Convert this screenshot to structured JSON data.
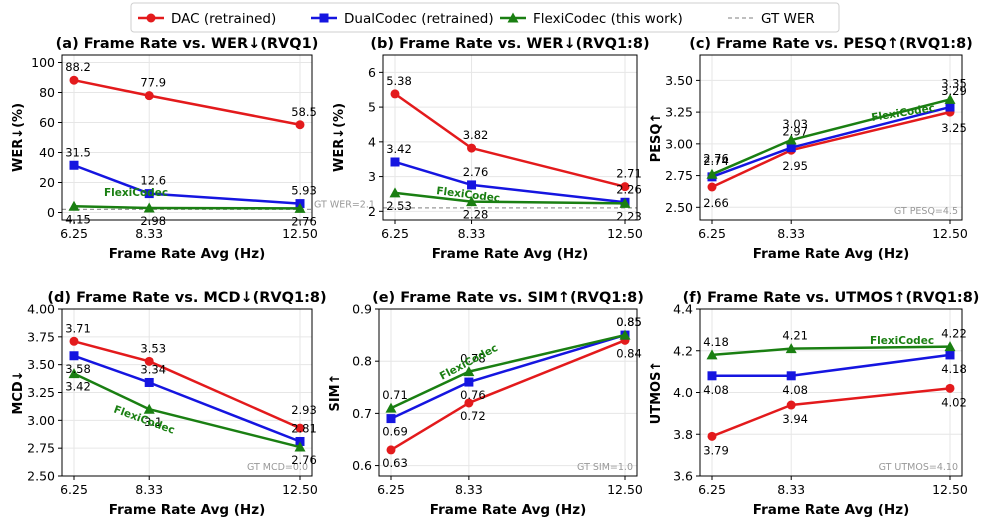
{
  "legend": {
    "items": [
      {
        "label": "DAC (retrained)",
        "color": "#e31a1c",
        "marker": "circle",
        "line": "solid"
      },
      {
        "label": "DualCodec (retrained)",
        "color": "#1515e0",
        "marker": "square",
        "line": "solid"
      },
      {
        "label": "FlexiCodec (this work)",
        "color": "#1a7f12",
        "marker": "triangle",
        "line": "solid"
      },
      {
        "label": "GT WER",
        "color": "#999999",
        "marker": "none",
        "line": "dashed"
      }
    ]
  },
  "colors": {
    "dac": "#e31a1c",
    "dual": "#1515e0",
    "flexi": "#1a7f12",
    "gt": "#999999"
  },
  "chart_data": [
    {
      "type": "line",
      "title": "(a) Frame Rate vs. WER↓(RVQ1)",
      "xlabel": "Frame Rate Avg (Hz)",
      "ylabel": "WER↓(%)",
      "x": [
        6.25,
        8.33,
        12.5
      ],
      "x_ticklabels": [
        "6.25",
        "8.33",
        "12.50"
      ],
      "ylim": [
        -5,
        105
      ],
      "yticks": [
        0,
        20,
        40,
        60,
        80,
        100
      ],
      "ytick_labels": [
        "0",
        "20",
        "40",
        "60",
        "80",
        "100"
      ],
      "series": [
        {
          "name": "DAC (retrained)",
          "values": [
            88.2,
            77.9,
            58.5
          ],
          "labels": [
            "88.2",
            "77.9",
            "58.5"
          ]
        },
        {
          "name": "DualCodec (retrained)",
          "values": [
            31.5,
            12.6,
            5.93
          ],
          "labels": [
            "31.5",
            "12.6",
            "5.93"
          ]
        },
        {
          "name": "FlexiCodec (this work)",
          "values": [
            4.15,
            2.98,
            2.76
          ],
          "labels": [
            "4.15",
            "2.98",
            "2.76"
          ]
        }
      ],
      "gt": {
        "value": 2.1,
        "label": "GT WER=2.1"
      },
      "flexi_annotation": "FlexiCodec"
    },
    {
      "type": "line",
      "title": "(b) Frame Rate vs. WER↓(RVQ1:8)",
      "xlabel": "Frame Rate Avg (Hz)",
      "ylabel": "WER↓(%)",
      "x": [
        6.25,
        8.33,
        12.5
      ],
      "x_ticklabels": [
        "6.25",
        "8.33",
        "12.50"
      ],
      "ylim": [
        1.75,
        6.5
      ],
      "yticks": [
        2,
        3,
        4,
        5,
        6
      ],
      "ytick_labels": [
        "2",
        "3",
        "4",
        "5",
        "6"
      ],
      "series": [
        {
          "name": "DAC (retrained)",
          "values": [
            5.38,
            3.82,
            2.71
          ],
          "labels": [
            "5.38",
            "3.82",
            "2.71"
          ]
        },
        {
          "name": "DualCodec (retrained)",
          "values": [
            3.42,
            2.76,
            2.26
          ],
          "labels": [
            "3.42",
            "2.76",
            "2.26"
          ]
        },
        {
          "name": "FlexiCodec (this work)",
          "values": [
            2.53,
            2.28,
            2.23
          ],
          "labels": [
            "2.53",
            "2.28",
            "2.23"
          ]
        }
      ],
      "gt": {
        "value": 2.1,
        "label": ""
      },
      "flexi_annotation": "FlexiCodec"
    },
    {
      "type": "line",
      "title": "(c) Frame Rate vs. PESQ↑(RVQ1:8)",
      "xlabel": "Frame Rate Avg (Hz)",
      "ylabel": "PESQ↑",
      "x": [
        6.25,
        8.33,
        12.5
      ],
      "x_ticklabels": [
        "6.25",
        "8.33",
        "12.50"
      ],
      "ylim": [
        2.4,
        3.7
      ],
      "yticks": [
        2.5,
        2.75,
        3.0,
        3.25,
        3.5
      ],
      "ytick_labels": [
        "2.50",
        "2.75",
        "3.00",
        "3.25",
        "3.50"
      ],
      "series": [
        {
          "name": "DAC (retrained)",
          "values": [
            2.66,
            2.95,
            3.25
          ],
          "labels": [
            "2.66",
            "2.95",
            "3.25"
          ]
        },
        {
          "name": "DualCodec (retrained)",
          "values": [
            2.74,
            2.97,
            3.29
          ],
          "labels": [
            "2.74",
            "2.97",
            "3.29"
          ]
        },
        {
          "name": "FlexiCodec (this work)",
          "values": [
            2.76,
            3.03,
            3.35
          ],
          "labels": [
            "2.76",
            "3.03",
            "3.35"
          ]
        }
      ],
      "gt": {
        "value": 4.5,
        "label": "GT PESQ=4.5"
      },
      "flexi_annotation": "FlexiCodec"
    },
    {
      "type": "line",
      "title": "(d) Frame Rate vs. MCD↓(RVQ1:8)",
      "xlabel": "Frame Rate Avg (Hz)",
      "ylabel": "MCD↓",
      "x": [
        6.25,
        8.33,
        12.5
      ],
      "x_ticklabels": [
        "6.25",
        "8.33",
        "12.50"
      ],
      "ylim": [
        2.5,
        4.0
      ],
      "yticks": [
        2.5,
        2.75,
        3.0,
        3.25,
        3.5,
        3.75,
        4.0
      ],
      "ytick_labels": [
        "2.50",
        "2.75",
        "3.00",
        "3.25",
        "3.50",
        "3.75",
        "4.00"
      ],
      "series": [
        {
          "name": "DAC (retrained)",
          "values": [
            3.71,
            3.53,
            2.93
          ],
          "labels": [
            "3.71",
            "3.53",
            "2.93"
          ]
        },
        {
          "name": "DualCodec (retrained)",
          "values": [
            3.58,
            3.34,
            2.81
          ],
          "labels": [
            "3.58",
            "3.34",
            "2.81"
          ]
        },
        {
          "name": "FlexiCodec (this work)",
          "values": [
            3.42,
            3.1,
            2.76
          ],
          "labels": [
            "3.42",
            "3.1",
            "2.76"
          ]
        }
      ],
      "gt": {
        "value": 0.0,
        "label": "GT MCD=0.0"
      },
      "flexi_annotation": "FlexiCodec"
    },
    {
      "type": "line",
      "title": "(e) Frame Rate vs. SIM↑(RVQ1:8)",
      "xlabel": "Frame Rate Avg (Hz)",
      "ylabel": "SIM↑",
      "x": [
        6.25,
        8.33,
        12.5
      ],
      "x_ticklabels": [
        "6.25",
        "8.33",
        "12.50"
      ],
      "ylim": [
        0.58,
        0.9
      ],
      "yticks": [
        0.6,
        0.7,
        0.8,
        0.9
      ],
      "ytick_labels": [
        "0.6",
        "0.7",
        "0.8",
        "0.9"
      ],
      "series": [
        {
          "name": "DAC (retrained)",
          "values": [
            0.63,
            0.72,
            0.84
          ],
          "labels": [
            "0.63",
            "0.72",
            "0.84"
          ]
        },
        {
          "name": "DualCodec (retrained)",
          "values": [
            0.69,
            0.76,
            0.85
          ],
          "labels": [
            "0.69",
            "0.76",
            "0.85"
          ]
        },
        {
          "name": "FlexiCodec (this work)",
          "values": [
            0.71,
            0.78,
            0.85
          ],
          "labels": [
            "0.71",
            "0.78",
            "0.85"
          ]
        }
      ],
      "gt": {
        "value": 1.0,
        "label": "GT SIM=1.0"
      },
      "flexi_annotation": "FlexiCodec"
    },
    {
      "type": "line",
      "title": "(f) Frame Rate vs. UTMOS↑(RVQ1:8)",
      "xlabel": "Frame Rate Avg (Hz)",
      "ylabel": "UTMOS↑",
      "x": [
        6.25,
        8.33,
        12.5
      ],
      "x_ticklabels": [
        "6.25",
        "8.33",
        "12.50"
      ],
      "ylim": [
        3.6,
        4.4
      ],
      "yticks": [
        3.6,
        3.8,
        4.0,
        4.2,
        4.4
      ],
      "ytick_labels": [
        "3.6",
        "3.8",
        "4.0",
        "4.2",
        "4.4"
      ],
      "series": [
        {
          "name": "DAC (retrained)",
          "values": [
            3.79,
            3.94,
            4.02
          ],
          "labels": [
            "3.79",
            "3.94",
            "4.02"
          ]
        },
        {
          "name": "DualCodec (retrained)",
          "values": [
            4.08,
            4.08,
            4.18
          ],
          "labels": [
            "4.08",
            "4.08",
            "4.18"
          ]
        },
        {
          "name": "FlexiCodec (this work)",
          "values": [
            4.18,
            4.21,
            4.22
          ],
          "labels": [
            "4.18",
            "4.21",
            "4.22"
          ]
        }
      ],
      "gt": {
        "value": 4.1,
        "label": "GT UTMOS=4.10"
      },
      "flexi_annotation": "FlexiCodec"
    }
  ]
}
